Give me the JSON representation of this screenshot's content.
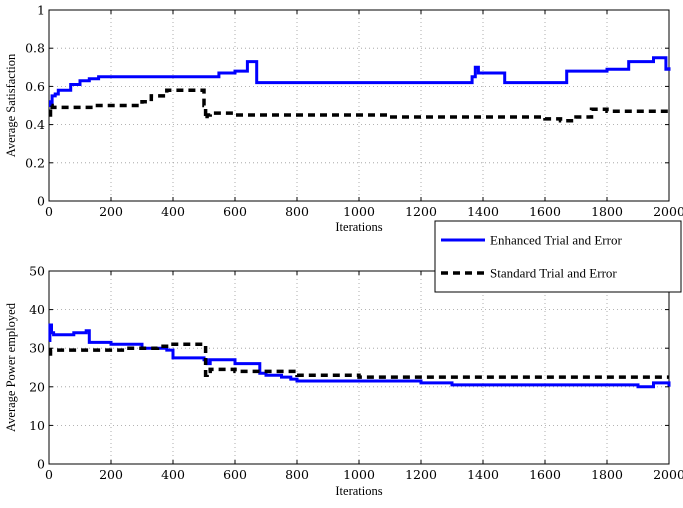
{
  "chart_data": [
    {
      "type": "line",
      "xlabel": "Iterations",
      "ylabel": "Average Satisfaction",
      "xlim": [
        0,
        2000
      ],
      "ylim": [
        0,
        1
      ],
      "xticks": [
        "0",
        "200",
        "400",
        "600",
        "800",
        "1000",
        "1200",
        "1400",
        "1600",
        "1800",
        "2000"
      ],
      "yticks": [
        "0",
        "0.2",
        "0.4",
        "0.6",
        "0.8",
        "1"
      ],
      "grid": true,
      "series": [
        {
          "name": "Enhanced Trial and Error",
          "color": "#0000ff",
          "style": "solid",
          "x": [
            0,
            5,
            10,
            20,
            30,
            50,
            70,
            100,
            130,
            160,
            200,
            300,
            400,
            500,
            548,
            600,
            640,
            660,
            670,
            680,
            700,
            800,
            900,
            1000,
            1100,
            1200,
            1300,
            1365,
            1375,
            1385,
            1400,
            1460,
            1470,
            1500,
            1600,
            1660,
            1670,
            1700,
            1750,
            1800,
            1850,
            1870,
            1900,
            1950,
            1990,
            2000
          ],
          "y": [
            0.52,
            0.5,
            0.55,
            0.56,
            0.58,
            0.58,
            0.61,
            0.63,
            0.64,
            0.65,
            0.65,
            0.65,
            0.65,
            0.65,
            0.67,
            0.68,
            0.73,
            0.73,
            0.62,
            0.62,
            0.62,
            0.62,
            0.62,
            0.62,
            0.62,
            0.62,
            0.62,
            0.65,
            0.7,
            0.67,
            0.67,
            0.67,
            0.62,
            0.62,
            0.62,
            0.62,
            0.68,
            0.68,
            0.68,
            0.69,
            0.69,
            0.73,
            0.73,
            0.75,
            0.69,
            0.7
          ]
        },
        {
          "name": "Standard Trial and Error",
          "color": "#000000",
          "style": "dashed",
          "x": [
            0,
            5,
            10,
            50,
            100,
            150,
            200,
            250,
            300,
            330,
            360,
            380,
            400,
            450,
            490,
            500,
            505,
            510,
            520,
            600,
            700,
            800,
            900,
            1000,
            1050,
            1100,
            1200,
            1300,
            1400,
            1500,
            1600,
            1650,
            1700,
            1750,
            1800,
            1900,
            1950,
            2000
          ],
          "y": [
            0.45,
            0.5,
            0.49,
            0.49,
            0.49,
            0.5,
            0.5,
            0.5,
            0.52,
            0.55,
            0.55,
            0.58,
            0.58,
            0.58,
            0.58,
            0.5,
            0.43,
            0.45,
            0.46,
            0.45,
            0.45,
            0.45,
            0.45,
            0.45,
            0.45,
            0.44,
            0.44,
            0.44,
            0.44,
            0.44,
            0.43,
            0.42,
            0.44,
            0.48,
            0.47,
            0.47,
            0.47,
            0.47
          ]
        }
      ]
    },
    {
      "type": "line",
      "xlabel": "Iterations",
      "ylabel": "Average Power employed",
      "xlim": [
        0,
        2000
      ],
      "ylim": [
        0,
        50
      ],
      "xticks": [
        "0",
        "200",
        "400",
        "600",
        "800",
        "1000",
        "1200",
        "1400",
        "1600",
        "1800",
        "2000"
      ],
      "yticks": [
        "0",
        "10",
        "20",
        "30",
        "40",
        "50"
      ],
      "grid": true,
      "series": [
        {
          "name": "Enhanced Trial and Error",
          "color": "#0000ff",
          "style": "solid",
          "x": [
            0,
            3,
            8,
            15,
            20,
            40,
            80,
            100,
            120,
            130,
            200,
            300,
            380,
            400,
            500,
            510,
            520,
            600,
            650,
            680,
            700,
            750,
            780,
            800,
            900,
            1000,
            1100,
            1200,
            1300,
            1400,
            1500,
            1600,
            1700,
            1800,
            1900,
            1950,
            2000
          ],
          "y": [
            32.0,
            36.0,
            34.0,
            33.5,
            33.5,
            33.5,
            34.0,
            34.0,
            34.5,
            31.5,
            31.0,
            30.0,
            29.5,
            27.5,
            27.0,
            26.0,
            27.0,
            26.0,
            26.0,
            23.5,
            23.0,
            22.5,
            22.0,
            21.5,
            21.5,
            21.5,
            21.5,
            21.0,
            20.5,
            20.5,
            20.5,
            20.5,
            20.5,
            20.5,
            20.0,
            21.0,
            20.0
          ]
        },
        {
          "name": "Standard Trial and Error",
          "color": "#000000",
          "style": "dashed",
          "x": [
            0,
            5,
            10,
            50,
            100,
            150,
            200,
            250,
            300,
            350,
            380,
            400,
            450,
            500,
            505,
            510,
            520,
            600,
            700,
            800,
            900,
            1000,
            1100,
            1200,
            1300,
            1400,
            1500,
            1600,
            1700,
            1800,
            1900,
            2000
          ],
          "y": [
            28.5,
            29.5,
            29.5,
            29.5,
            29.5,
            29.5,
            29.5,
            30.0,
            30.0,
            30.5,
            30.5,
            31.0,
            31.0,
            31.0,
            23.0,
            24.0,
            24.5,
            24.0,
            24.0,
            23.0,
            23.0,
            22.5,
            22.5,
            22.5,
            22.5,
            22.5,
            22.5,
            22.5,
            22.5,
            22.5,
            22.5,
            22.5
          ]
        }
      ]
    }
  ],
  "legend": {
    "position": "between-plots-right",
    "entries": [
      {
        "label": "Enhanced Trial and Error",
        "color": "#0000ff",
        "style": "solid"
      },
      {
        "label": "Standard Trial and Error",
        "color": "#000000",
        "style": "dashed"
      }
    ]
  }
}
